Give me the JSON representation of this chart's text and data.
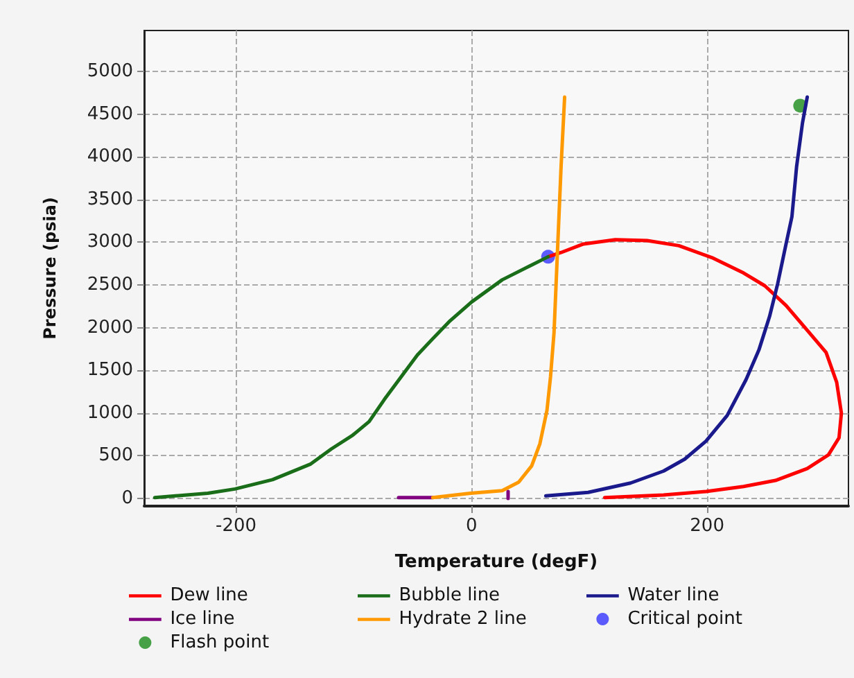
{
  "chart_data": {
    "type": "line",
    "xlabel": "Temperature (degF)",
    "ylabel": "Pressure (psia)",
    "xlim": [
      -278,
      320
    ],
    "ylim": [
      -90,
      5480
    ],
    "xticks": [
      -200,
      0,
      200
    ],
    "yticks": [
      0,
      500,
      1000,
      1500,
      2000,
      2500,
      3000,
      3500,
      4000,
      4500,
      5000
    ],
    "grid": true,
    "legend": "bottom",
    "marker": "none",
    "series": [
      {
        "name": "Dew line",
        "color": "#ff0000",
        "x": [
          65,
          76,
          95,
          122,
          149,
          176,
          204,
          231,
          249,
          267,
          285,
          301,
          310,
          314,
          312,
          303,
          285,
          258,
          231,
          199,
          163,
          113
        ],
        "values": [
          2830,
          2880,
          2980,
          3030,
          3020,
          2960,
          2820,
          2640,
          2490,
          2260,
          1970,
          1710,
          1360,
          1000,
          710,
          510,
          350,
          210,
          140,
          80,
          40,
          10
        ]
      },
      {
        "name": "Bubble line",
        "color": "#1a6e1a",
        "x": [
          -269,
          -224,
          -201,
          -169,
          -137,
          -119,
          -101,
          -87,
          -74,
          -60,
          -46,
          -33,
          -19,
          0,
          26,
          49,
          65
        ],
        "values": [
          10,
          60,
          110,
          220,
          400,
          580,
          740,
          900,
          1160,
          1420,
          1680,
          1870,
          2070,
          2300,
          2560,
          2720,
          2830
        ]
      },
      {
        "name": "Water line",
        "color": "#1a1a8c",
        "x": [
          63,
          99,
          135,
          163,
          181,
          199,
          217,
          233,
          244,
          253,
          260,
          267,
          272,
          276,
          281,
          285
        ],
        "values": [
          30,
          70,
          180,
          320,
          460,
          670,
          970,
          1390,
          1740,
          2130,
          2520,
          2980,
          3300,
          3890,
          4400,
          4700
        ]
      },
      {
        "name": "Ice line",
        "color": "#800080",
        "x": [
          -62,
          -33,
          0,
          31,
          31
        ],
        "values": [
          10,
          10,
          null,
          0,
          80
        ]
      },
      {
        "name": "Hydrate 2 line",
        "color": "#ff9900",
        "x": [
          -33,
          -1,
          26,
          40,
          51,
          58,
          64,
          67,
          70,
          72,
          74,
          76,
          79
        ],
        "values": [
          10,
          60,
          90,
          190,
          380,
          640,
          1030,
          1420,
          1940,
          2590,
          3240,
          3890,
          4700
        ]
      },
      {
        "name": "Critical point",
        "type": "scatter",
        "marker": "circle",
        "color": "#3333ff",
        "x": [
          65
        ],
        "values": [
          2830
        ]
      },
      {
        "name": "Flash point",
        "type": "scatter",
        "marker": "circle",
        "color": "#1a8c1a",
        "x": [
          279
        ],
        "values": [
          4600
        ]
      }
    ]
  }
}
